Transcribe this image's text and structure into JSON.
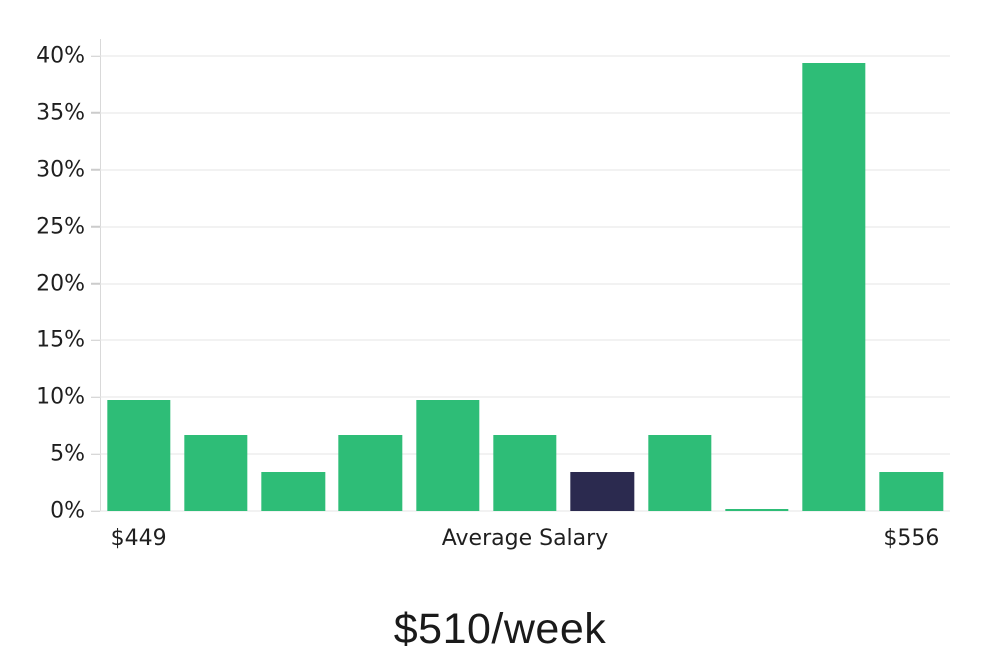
{
  "chart_data": {
    "type": "bar",
    "title": "$510/week",
    "xlabel": "",
    "ylabel": "",
    "ylim": [
      0,
      40
    ],
    "grid": true,
    "legend": "none",
    "y_ticks": [
      {
        "value": 0,
        "label": "0%"
      },
      {
        "value": 5,
        "label": "5%"
      },
      {
        "value": 10,
        "label": "10%"
      },
      {
        "value": 15,
        "label": "15%"
      },
      {
        "value": 20,
        "label": "20%"
      },
      {
        "value": 25,
        "label": "25%"
      },
      {
        "value": 30,
        "label": "30%"
      },
      {
        "value": 35,
        "label": "35%"
      },
      {
        "value": 40,
        "label": "40%"
      }
    ],
    "bars": [
      {
        "value": 9.8,
        "color": "green"
      },
      {
        "value": 6.7,
        "color": "green"
      },
      {
        "value": 3.4,
        "color": "green"
      },
      {
        "value": 6.7,
        "color": "green"
      },
      {
        "value": 9.8,
        "color": "green"
      },
      {
        "value": 6.7,
        "color": "green"
      },
      {
        "value": 3.4,
        "color": "navy"
      },
      {
        "value": 6.7,
        "color": "green"
      },
      {
        "value": 0.15,
        "color": "green"
      },
      {
        "value": 39.4,
        "color": "green"
      },
      {
        "value": 3.4,
        "color": "green"
      }
    ],
    "highlight_index": 6,
    "x_ticks": [
      {
        "label": "$449",
        "bar_index": 0
      },
      {
        "label": "Average Salary",
        "bar_index": 5
      },
      {
        "label": "$556",
        "bar_index": 10
      }
    ],
    "colors": {
      "green": "#2EBD77",
      "navy": "#2B2A4F",
      "gridline": "#e5e5e5",
      "axis": "#d9d9d9",
      "text": "#1f1f1f"
    }
  }
}
